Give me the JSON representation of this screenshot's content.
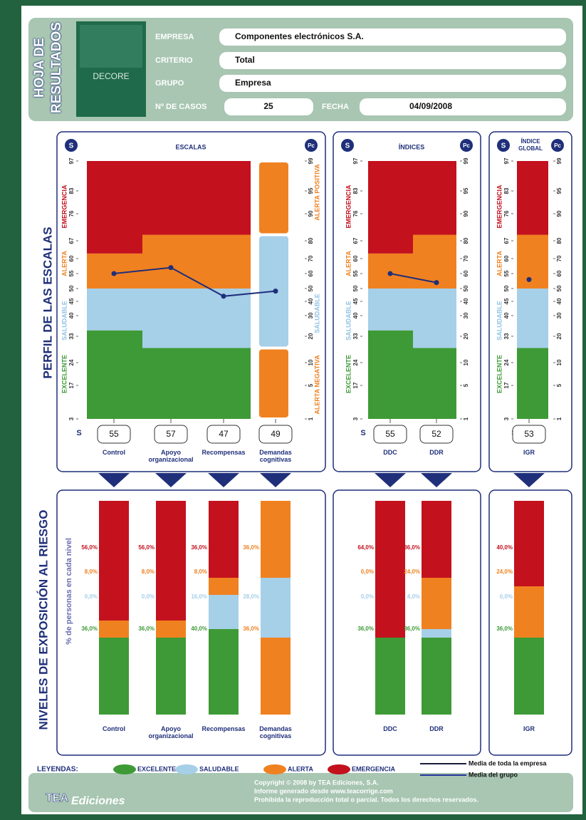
{
  "header": {
    "title": "HOJA DE RESULTADOS",
    "book": "DECORE",
    "fields": [
      {
        "label": "EMPRESA",
        "value": "Componentes electrónicos S.A."
      },
      {
        "label": "CRITERIO",
        "value": "Total"
      },
      {
        "label": "GRUPO",
        "value": "Empresa"
      }
    ],
    "cases": {
      "label": "Nº DE CASOS",
      "value": "25"
    },
    "date": {
      "label": "FECHA",
      "value": "04/09/2008"
    }
  },
  "profile": {
    "title": "PERFIL DE LAS ESCALAS",
    "s_badge": "S",
    "pc_badge": "Pc",
    "s_label": "S",
    "ylim": [
      3,
      97
    ],
    "s_ticks": [
      97,
      83,
      76,
      67,
      60,
      55,
      50,
      45,
      40,
      33,
      24,
      17,
      3
    ],
    "pc_ticks": [
      99,
      95,
      90,
      80,
      70,
      60,
      50,
      40,
      30,
      20,
      10,
      5,
      1
    ],
    "zone_labels": [
      {
        "name": "EXCELENTE",
        "color": "#3e9a36"
      },
      {
        "name": "SALUDABLE",
        "color": "#8fc3e3"
      },
      {
        "name": "ALERTA",
        "color": "#f08120"
      },
      {
        "name": "EMERGENCIA",
        "color": "#c3111e"
      }
    ],
    "right_labels": [
      {
        "name": "ALERTA NEGATIVA",
        "color": "#f08120"
      },
      {
        "name": "SALUDABLE",
        "color": "#8fc3e3"
      },
      {
        "name": "ALERTA POSITIVA",
        "color": "#f08120"
      }
    ]
  },
  "exposure": {
    "title": "NIVELES DE EXPOSICIÓN AL RIESGO",
    "axis_label": "% de personas en cada nivel",
    "ylim": [
      0,
      100
    ]
  },
  "panels": [
    {
      "title": "ESCALAS",
      "scales": [
        {
          "name": "Control",
          "score": 55,
          "bands": [
            {
              "top": 35,
              "color": "#3e9a36"
            },
            {
              "top": 50,
              "color": "#a6cfe8"
            },
            {
              "top": 62,
              "color": "#f08120"
            },
            {
              "top": 97,
              "color": "#c3111e"
            }
          ],
          "exposure": [
            {
              "value": 36,
              "label": "36,0%",
              "color": "#3e9a36"
            },
            {
              "value": 0,
              "label": "0,0%",
              "color": "#a6cfe8"
            },
            {
              "value": 8,
              "label": "8,0%",
              "color": "#f08120"
            },
            {
              "value": 56,
              "label": "56,0%",
              "color": "#c3111e"
            }
          ]
        },
        {
          "name": "Apoyo organizacional",
          "score": 57,
          "bands": [
            {
              "top": 29,
              "color": "#3e9a36"
            },
            {
              "top": 50,
              "color": "#a6cfe8"
            },
            {
              "top": 69,
              "color": "#f08120"
            },
            {
              "top": 97,
              "color": "#c3111e"
            }
          ],
          "exposure": [
            {
              "value": 36,
              "label": "36,0%",
              "color": "#3e9a36"
            },
            {
              "value": 0,
              "label": "0,0%",
              "color": "#a6cfe8"
            },
            {
              "value": 8,
              "label": "8,0%",
              "color": "#f08120"
            },
            {
              "value": 56,
              "label": "56,0%",
              "color": "#c3111e"
            }
          ]
        },
        {
          "name": "Recompensas",
          "score": 47,
          "bands": [
            {
              "top": 29,
              "color": "#3e9a36"
            },
            {
              "top": 50,
              "color": "#a6cfe8"
            },
            {
              "top": 69,
              "color": "#f08120"
            },
            {
              "top": 97,
              "color": "#c3111e"
            }
          ],
          "exposure": [
            {
              "value": 40,
              "label": "40,0%",
              "color": "#3e9a36"
            },
            {
              "value": 16,
              "label": "16,0%",
              "color": "#a6cfe8"
            },
            {
              "value": 8,
              "label": "8,0%",
              "color": "#f08120"
            },
            {
              "value": 36,
              "label": "36,0%",
              "color": "#c3111e"
            }
          ]
        },
        {
          "name": "Demandas cognitivas",
          "score": 49,
          "bands": [
            {
              "top": 29,
              "color": "#f08120"
            },
            {
              "top": 69,
              "color": "#a6cfe8"
            },
            {
              "top": 97,
              "color": "#f08120"
            }
          ],
          "exposure": [
            {
              "value": 36,
              "label": "36,0%",
              "color": "#f08120"
            },
            {
              "value": 28,
              "label": "28,0%",
              "color": "#a6cfe8"
            },
            {
              "value": 36,
              "label": "36,0%",
              "color": "#f08120"
            }
          ]
        }
      ]
    },
    {
      "title": "ÍNDICES",
      "scales": [
        {
          "name": "DDC",
          "score": 55,
          "bands": [
            {
              "top": 35,
              "color": "#3e9a36"
            },
            {
              "top": 50,
              "color": "#a6cfe8"
            },
            {
              "top": 62,
              "color": "#f08120"
            },
            {
              "top": 97,
              "color": "#c3111e"
            }
          ],
          "exposure": [
            {
              "value": 36,
              "label": "36,0%",
              "color": "#3e9a36"
            },
            {
              "value": 0,
              "label": "0,0%",
              "color": "#a6cfe8"
            },
            {
              "value": 0,
              "label": "0,0%",
              "color": "#f08120"
            },
            {
              "value": 64,
              "label": "64,0%",
              "color": "#c3111e"
            }
          ]
        },
        {
          "name": "DDR",
          "score": 52,
          "bands": [
            {
              "top": 29,
              "color": "#3e9a36"
            },
            {
              "top": 50,
              "color": "#a6cfe8"
            },
            {
              "top": 69,
              "color": "#f08120"
            },
            {
              "top": 97,
              "color": "#c3111e"
            }
          ],
          "exposure": [
            {
              "value": 36,
              "label": "36,0%",
              "color": "#3e9a36"
            },
            {
              "value": 4,
              "label": "4,0%",
              "color": "#a6cfe8"
            },
            {
              "value": 24,
              "label": "24,0%",
              "color": "#f08120"
            },
            {
              "value": 36,
              "label": "36,0%",
              "color": "#c3111e"
            }
          ]
        }
      ]
    },
    {
      "title": "ÍNDICE GLOBAL",
      "scales": [
        {
          "name": "IGR",
          "score": 53,
          "bands": [
            {
              "top": 29,
              "color": "#3e9a36"
            },
            {
              "top": 50,
              "color": "#a6cfe8"
            },
            {
              "top": 69,
              "color": "#f08120"
            },
            {
              "top": 97,
              "color": "#c3111e"
            }
          ],
          "exposure": [
            {
              "value": 36,
              "label": "36,0%",
              "color": "#3e9a36"
            },
            {
              "value": 0,
              "label": "0,0%",
              "color": "#a6cfe8"
            },
            {
              "value": 24,
              "label": "24,0%",
              "color": "#f08120"
            },
            {
              "value": 40,
              "label": "40,0%",
              "color": "#c3111e"
            }
          ]
        }
      ]
    }
  ],
  "legend": {
    "title": "LEYENDAS:",
    "levels": [
      {
        "name": "EXCELENTE",
        "color": "#3e9a36"
      },
      {
        "name": "SALUDABLE",
        "color": "#a6cfe8"
      },
      {
        "name": "ALERTA",
        "color": "#f08120"
      },
      {
        "name": "EMERGENCIA",
        "color": "#c3111e"
      }
    ],
    "lines": [
      {
        "name": "Media de toda la empresa",
        "color": "#1b1b3d"
      },
      {
        "name": "Media del grupo",
        "color": "#26339a"
      }
    ]
  },
  "footer": {
    "logo": "TEA",
    "brand": "Ediciones",
    "lines": [
      "Copyright © 2008 by TEA Ediciones, S.A.",
      "Informe generado desde www.teacorrige.com",
      "Prohibida la reproducción total o parcial. Todos los derechos reservados."
    ]
  }
}
